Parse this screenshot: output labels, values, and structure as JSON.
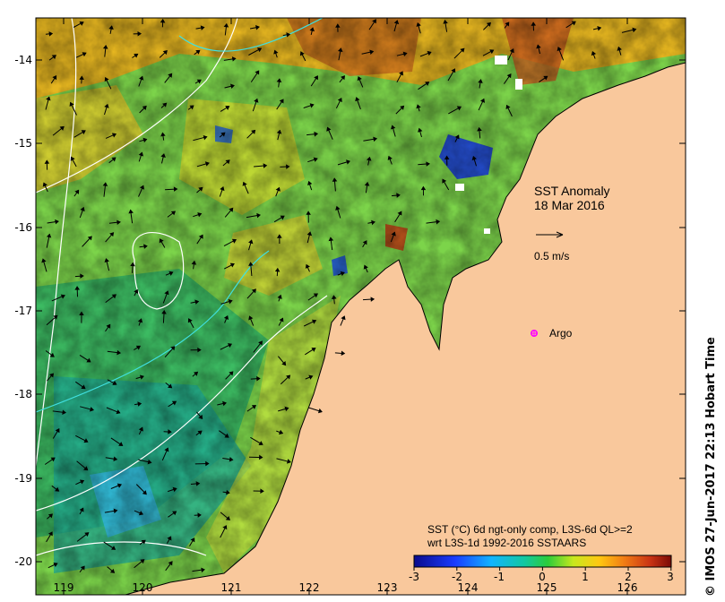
{
  "map": {
    "title": "SST Anomaly",
    "date": "18 Mar 2016",
    "vector_scale_label": "0.5 m/s",
    "argo_label": "Argo",
    "legend_line1": "SST (°C) 6d ngt-only comp, L3S-6d QL>=2",
    "legend_line2": "wrt L3S-1d 1992-2016 SSTAARS",
    "side_credit": "© IMOS 27-Jun-2017 22:13 Hobart Time",
    "lon_ticks": [
      "119",
      "120",
      "121",
      "122",
      "123",
      "124",
      "125",
      "126"
    ],
    "lat_ticks": [
      "-14",
      "-15",
      "-16",
      "-17",
      "-18",
      "-19",
      "-20"
    ],
    "colorbar_ticks": [
      "-3",
      "-2",
      "-1",
      "0",
      "1",
      "2",
      "3"
    ],
    "colors": {
      "land": "#f9c89c",
      "sea_base": "#7cd44a",
      "argo_marker": "#ff00ff",
      "contour_white": "#ffffff",
      "contour_cyan": "#40e0e0"
    }
  }
}
